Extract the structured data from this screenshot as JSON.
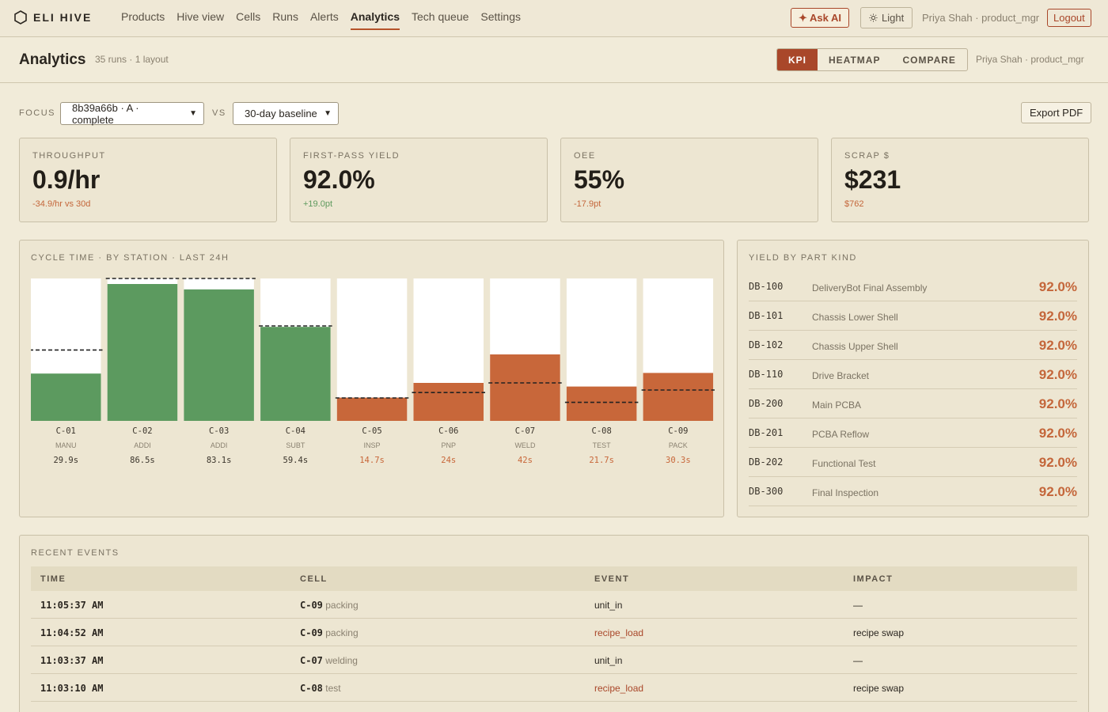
{
  "brand": {
    "name": "ELI HIVE",
    "icon": "hexagon-icon"
  },
  "nav": {
    "links": [
      "Products",
      "Hive view",
      "Cells",
      "Runs",
      "Alerts",
      "Analytics",
      "Tech queue",
      "Settings"
    ],
    "active": "Analytics",
    "ask_ai": "✦ Ask AI",
    "theme": "Light",
    "user": "Priya Shah · product_mgr",
    "logout": "Logout"
  },
  "header": {
    "title": "Analytics",
    "subtitle": "35 runs · 1 layout",
    "tabs": [
      "KPI",
      "HEATMAP",
      "COMPARE"
    ],
    "active_tab": "KPI",
    "user": "Priya Shah · product_mgr"
  },
  "filters": {
    "focus_label": "FOCUS",
    "focus_value": "8b39a66b · A · complete",
    "vs_label": "VS",
    "vs_value": "30-day baseline",
    "export": "Export PDF"
  },
  "kpis": [
    {
      "label": "THROUGHPUT",
      "value": "0.9/hr",
      "delta": "-34.9/hr vs 30d",
      "trend": "neg"
    },
    {
      "label": "FIRST-PASS YIELD",
      "value": "92.0%",
      "delta": "+19.0pt",
      "trend": "pos"
    },
    {
      "label": "OEE",
      "value": "55%",
      "delta": "-17.9pt",
      "trend": "neg"
    },
    {
      "label": "SCRAP $",
      "value": "$231",
      "delta": "$762",
      "trend": "neg"
    }
  ],
  "chart_data": {
    "type": "bar",
    "title": "CYCLE TIME · BY STATION · LAST 24H",
    "categories": [
      "C-01",
      "C-02",
      "C-03",
      "C-04",
      "C-05",
      "C-06",
      "C-07",
      "C-08",
      "C-09"
    ],
    "subcategories": [
      "MANU",
      "ADDI",
      "ADDI",
      "SUBT",
      "INSP",
      "PNP",
      "WELD",
      "TEST",
      "PACK"
    ],
    "value_labels": [
      "29.9s",
      "86.5s",
      "83.1s",
      "59.4s",
      "14.7s",
      "24s",
      "42s",
      "21.7s",
      "30.3s"
    ],
    "series": [
      {
        "values": [
          29.9,
          86.5,
          83.1,
          59.4,
          14.7,
          24,
          42,
          21.7,
          30.3
        ]
      }
    ],
    "baseline": [
      44.8,
      90,
      90,
      60,
      14.5,
      17.9,
      24,
      11.7,
      19.5
    ],
    "status": [
      "good",
      "good",
      "good",
      "good",
      "bad",
      "bad",
      "bad",
      "bad",
      "bad"
    ],
    "ylim": [
      0,
      90
    ],
    "colors": {
      "good": "#5c9a5f",
      "bad": "#c8673a",
      "track": "#ffffff",
      "baseline": "#222222"
    }
  },
  "yield": {
    "title": "YIELD BY PART KIND",
    "rows": [
      {
        "code": "DB-100",
        "name": "DeliveryBot Final Assembly",
        "pct": "92.0%"
      },
      {
        "code": "DB-101",
        "name": "Chassis Lower Shell",
        "pct": "92.0%"
      },
      {
        "code": "DB-102",
        "name": "Chassis Upper Shell",
        "pct": "92.0%"
      },
      {
        "code": "DB-110",
        "name": "Drive Bracket",
        "pct": "92.0%"
      },
      {
        "code": "DB-200",
        "name": "Main PCBA",
        "pct": "92.0%"
      },
      {
        "code": "DB-201",
        "name": "PCBA Reflow",
        "pct": "92.0%"
      },
      {
        "code": "DB-202",
        "name": "Functional Test",
        "pct": "92.0%"
      },
      {
        "code": "DB-300",
        "name": "Final Inspection",
        "pct": "92.0%"
      }
    ]
  },
  "events": {
    "title": "RECENT EVENTS",
    "columns": [
      "TIME",
      "CELL",
      "EVENT",
      "IMPACT"
    ],
    "rows": [
      {
        "time": "11:05:37 AM",
        "cell": "C-09",
        "cell_name": "packing",
        "event": "unit_in",
        "impact": "—"
      },
      {
        "time": "11:04:52 AM",
        "cell": "C-09",
        "cell_name": "packing",
        "event": "recipe_load",
        "impact": "recipe swap"
      },
      {
        "time": "11:03:37 AM",
        "cell": "C-07",
        "cell_name": "welding",
        "event": "unit_in",
        "impact": "—"
      },
      {
        "time": "11:03:10 AM",
        "cell": "C-08",
        "cell_name": "test",
        "event": "recipe_load",
        "impact": "recipe swap"
      }
    ]
  }
}
